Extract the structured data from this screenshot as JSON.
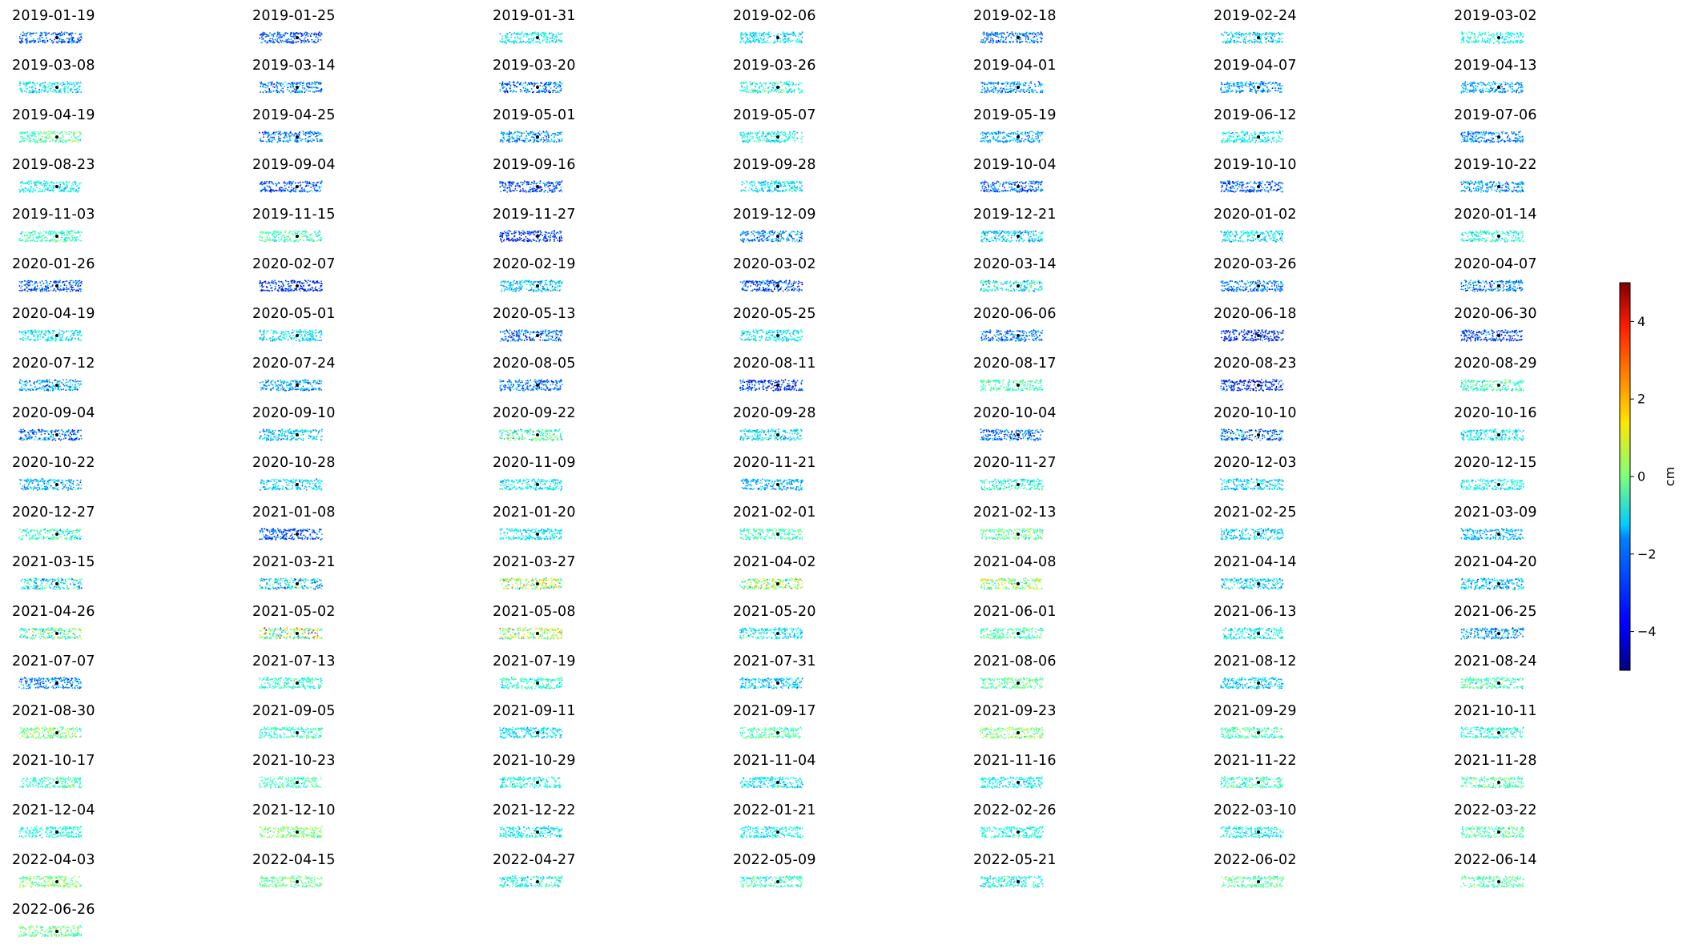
{
  "chart_data": {
    "type": "scatter",
    "layout": "small-multiples",
    "columns": 7,
    "panels": [
      {
        "date": "2019-01-19",
        "bias": -2.8,
        "spread": 0.9
      },
      {
        "date": "2019-01-25",
        "bias": -2.9,
        "spread": 0.8
      },
      {
        "date": "2019-01-31",
        "bias": -1.3,
        "spread": 0.7
      },
      {
        "date": "2019-02-06",
        "bias": -1.5,
        "spread": 0.7
      },
      {
        "date": "2019-02-18",
        "bias": -2.6,
        "spread": 0.8
      },
      {
        "date": "2019-02-24",
        "bias": -1.6,
        "spread": 0.9
      },
      {
        "date": "2019-03-02",
        "bias": -1.1,
        "spread": 0.6
      },
      {
        "date": "2019-03-08",
        "bias": -1.4,
        "spread": 0.8
      },
      {
        "date": "2019-03-14",
        "bias": -2.6,
        "spread": 1.0
      },
      {
        "date": "2019-03-20",
        "bias": -2.7,
        "spread": 1.3
      },
      {
        "date": "2019-03-26",
        "bias": -1.0,
        "spread": 1.0
      },
      {
        "date": "2019-04-01",
        "bias": -2.3,
        "spread": 0.8
      },
      {
        "date": "2019-04-07",
        "bias": -2.2,
        "spread": 0.9
      },
      {
        "date": "2019-04-13",
        "bias": -2.2,
        "spread": 0.8
      },
      {
        "date": "2019-04-19",
        "bias": -0.5,
        "spread": 0.9
      },
      {
        "date": "2019-04-25",
        "bias": -2.5,
        "spread": 1.0
      },
      {
        "date": "2019-05-01",
        "bias": -2.3,
        "spread": 0.9
      },
      {
        "date": "2019-05-07",
        "bias": -1.2,
        "spread": 0.9
      },
      {
        "date": "2019-05-19",
        "bias": -2.1,
        "spread": 0.8
      },
      {
        "date": "2019-06-12",
        "bias": -1.2,
        "spread": 0.8
      },
      {
        "date": "2019-07-06",
        "bias": -2.4,
        "spread": 0.8
      },
      {
        "date": "2019-08-23",
        "bias": -1.3,
        "spread": 0.7
      },
      {
        "date": "2019-09-04",
        "bias": -3.0,
        "spread": 0.9
      },
      {
        "date": "2019-09-16",
        "bias": -3.0,
        "spread": 0.9
      },
      {
        "date": "2019-09-28",
        "bias": -1.5,
        "spread": 0.8
      },
      {
        "date": "2019-10-04",
        "bias": -2.8,
        "spread": 0.9
      },
      {
        "date": "2019-10-10",
        "bias": -2.9,
        "spread": 1.0
      },
      {
        "date": "2019-10-22",
        "bias": -2.2,
        "spread": 0.8
      },
      {
        "date": "2019-11-03",
        "bias": -0.7,
        "spread": 0.9
      },
      {
        "date": "2019-11-15",
        "bias": -0.6,
        "spread": 0.8
      },
      {
        "date": "2019-11-27",
        "bias": -3.2,
        "spread": 0.9
      },
      {
        "date": "2019-12-09",
        "bias": -2.4,
        "spread": 1.0
      },
      {
        "date": "2019-12-21",
        "bias": -1.7,
        "spread": 0.9
      },
      {
        "date": "2020-01-02",
        "bias": -1.4,
        "spread": 0.8
      },
      {
        "date": "2020-01-14",
        "bias": -1.0,
        "spread": 0.8
      },
      {
        "date": "2020-01-26",
        "bias": -3.0,
        "spread": 0.9
      },
      {
        "date": "2020-02-07",
        "bias": -3.3,
        "spread": 0.9
      },
      {
        "date": "2020-02-19",
        "bias": -1.8,
        "spread": 0.9
      },
      {
        "date": "2020-03-02",
        "bias": -3.1,
        "spread": 1.0
      },
      {
        "date": "2020-03-14",
        "bias": -1.3,
        "spread": 1.2
      },
      {
        "date": "2020-03-26",
        "bias": -2.4,
        "spread": 1.0
      },
      {
        "date": "2020-04-07",
        "bias": -2.4,
        "spread": 1.1
      },
      {
        "date": "2020-04-19",
        "bias": -1.4,
        "spread": 0.7
      },
      {
        "date": "2020-05-01",
        "bias": -1.5,
        "spread": 0.7
      },
      {
        "date": "2020-05-13",
        "bias": -2.8,
        "spread": 1.1
      },
      {
        "date": "2020-05-25",
        "bias": -1.4,
        "spread": 0.7
      },
      {
        "date": "2020-06-06",
        "bias": -2.5,
        "spread": 0.8
      },
      {
        "date": "2020-06-18",
        "bias": -3.3,
        "spread": 0.9
      },
      {
        "date": "2020-06-30",
        "bias": -3.1,
        "spread": 0.9
      },
      {
        "date": "2020-07-12",
        "bias": -2.2,
        "spread": 0.8
      },
      {
        "date": "2020-07-24",
        "bias": -2.3,
        "spread": 0.8
      },
      {
        "date": "2020-08-05",
        "bias": -2.6,
        "spread": 0.9
      },
      {
        "date": "2020-08-11",
        "bias": -3.3,
        "spread": 0.9
      },
      {
        "date": "2020-08-17",
        "bias": -0.6,
        "spread": 0.8
      },
      {
        "date": "2020-08-23",
        "bias": -3.4,
        "spread": 1.0
      },
      {
        "date": "2020-08-29",
        "bias": -0.7,
        "spread": 0.9
      },
      {
        "date": "2020-09-04",
        "bias": -2.7,
        "spread": 1.3
      },
      {
        "date": "2020-09-10",
        "bias": -1.9,
        "spread": 0.9
      },
      {
        "date": "2020-09-22",
        "bias": -0.5,
        "spread": 1.3
      },
      {
        "date": "2020-09-28",
        "bias": -1.5,
        "spread": 1.0
      },
      {
        "date": "2020-10-04",
        "bias": -2.6,
        "spread": 0.9
      },
      {
        "date": "2020-10-10",
        "bias": -2.6,
        "spread": 1.8
      },
      {
        "date": "2020-10-16",
        "bias": -1.2,
        "spread": 0.9
      },
      {
        "date": "2020-10-22",
        "bias": -2.0,
        "spread": 0.8
      },
      {
        "date": "2020-10-28",
        "bias": -1.7,
        "spread": 0.8
      },
      {
        "date": "2020-11-09",
        "bias": -1.4,
        "spread": 0.7
      },
      {
        "date": "2020-11-21",
        "bias": -2.0,
        "spread": 0.8
      },
      {
        "date": "2020-11-27",
        "bias": -0.9,
        "spread": 0.9
      },
      {
        "date": "2020-12-03",
        "bias": -1.6,
        "spread": 0.8
      },
      {
        "date": "2020-12-15",
        "bias": -1.2,
        "spread": 0.7
      },
      {
        "date": "2020-12-27",
        "bias": -0.8,
        "spread": 0.9
      },
      {
        "date": "2021-01-08",
        "bias": -2.9,
        "spread": 0.9
      },
      {
        "date": "2021-01-20",
        "bias": -1.4,
        "spread": 0.7
      },
      {
        "date": "2021-02-01",
        "bias": -0.6,
        "spread": 0.8
      },
      {
        "date": "2021-02-13",
        "bias": -0.3,
        "spread": 0.9
      },
      {
        "date": "2021-02-25",
        "bias": -1.6,
        "spread": 0.8
      },
      {
        "date": "2021-03-09",
        "bias": -2.0,
        "spread": 0.8
      },
      {
        "date": "2021-03-15",
        "bias": -1.3,
        "spread": 1.3
      },
      {
        "date": "2021-03-21",
        "bias": -1.5,
        "spread": 1.5
      },
      {
        "date": "2021-03-27",
        "bias": 0.3,
        "spread": 1.5
      },
      {
        "date": "2021-04-02",
        "bias": 0.5,
        "spread": 1.6
      },
      {
        "date": "2021-04-08",
        "bias": 0.2,
        "spread": 1.2
      },
      {
        "date": "2021-04-14",
        "bias": -1.4,
        "spread": 1.0
      },
      {
        "date": "2021-04-20",
        "bias": -1.8,
        "spread": 1.0
      },
      {
        "date": "2021-04-26",
        "bias": -0.5,
        "spread": 1.3
      },
      {
        "date": "2021-05-02",
        "bias": 0.2,
        "spread": 2.0
      },
      {
        "date": "2021-05-08",
        "bias": 0.4,
        "spread": 1.4
      },
      {
        "date": "2021-05-20",
        "bias": -1.4,
        "spread": 0.8
      },
      {
        "date": "2021-06-01",
        "bias": -0.5,
        "spread": 0.8
      },
      {
        "date": "2021-06-13",
        "bias": -1.2,
        "spread": 0.9
      },
      {
        "date": "2021-06-25",
        "bias": -2.2,
        "spread": 1.1
      },
      {
        "date": "2021-07-07",
        "bias": -2.4,
        "spread": 1.1
      },
      {
        "date": "2021-07-13",
        "bias": -0.8,
        "spread": 0.7
      },
      {
        "date": "2021-07-19",
        "bias": -0.8,
        "spread": 0.7
      },
      {
        "date": "2021-07-31",
        "bias": -1.7,
        "spread": 0.8
      },
      {
        "date": "2021-08-06",
        "bias": -0.4,
        "spread": 0.7
      },
      {
        "date": "2021-08-12",
        "bias": -1.6,
        "spread": 0.8
      },
      {
        "date": "2021-08-24",
        "bias": -0.6,
        "spread": 0.9
      },
      {
        "date": "2021-08-30",
        "bias": -0.1,
        "spread": 1.1
      },
      {
        "date": "2021-09-05",
        "bias": -0.8,
        "spread": 0.8
      },
      {
        "date": "2021-09-11",
        "bias": -1.5,
        "spread": 0.7
      },
      {
        "date": "2021-09-17",
        "bias": -0.5,
        "spread": 0.7
      },
      {
        "date": "2021-09-23",
        "bias": 0.0,
        "spread": 1.0
      },
      {
        "date": "2021-09-29",
        "bias": -0.6,
        "spread": 0.8
      },
      {
        "date": "2021-10-11",
        "bias": -0.9,
        "spread": 0.7
      },
      {
        "date": "2021-10-17",
        "bias": -0.7,
        "spread": 0.7
      },
      {
        "date": "2021-10-23",
        "bias": -0.6,
        "spread": 0.7
      },
      {
        "date": "2021-10-29",
        "bias": -1.0,
        "spread": 0.7
      },
      {
        "date": "2021-11-04",
        "bias": -1.4,
        "spread": 0.7
      },
      {
        "date": "2021-11-16",
        "bias": -1.3,
        "spread": 0.7
      },
      {
        "date": "2021-11-22",
        "bias": -0.8,
        "spread": 0.8
      },
      {
        "date": "2021-11-28",
        "bias": -0.5,
        "spread": 0.8
      },
      {
        "date": "2021-12-04",
        "bias": -1.0,
        "spread": 0.7
      },
      {
        "date": "2021-12-10",
        "bias": 0.1,
        "spread": 0.9
      },
      {
        "date": "2021-12-22",
        "bias": -1.4,
        "spread": 0.8
      },
      {
        "date": "2022-01-21",
        "bias": -1.2,
        "spread": 0.6
      },
      {
        "date": "2022-02-26",
        "bias": -1.0,
        "spread": 0.6
      },
      {
        "date": "2022-03-10",
        "bias": -1.2,
        "spread": 0.7
      },
      {
        "date": "2022-03-22",
        "bias": -0.4,
        "spread": 0.8
      },
      {
        "date": "2022-04-03",
        "bias": 0.0,
        "spread": 0.9
      },
      {
        "date": "2022-04-15",
        "bias": -0.2,
        "spread": 0.7
      },
      {
        "date": "2022-04-27",
        "bias": -1.0,
        "spread": 0.9
      },
      {
        "date": "2022-05-09",
        "bias": -0.7,
        "spread": 0.8
      },
      {
        "date": "2022-05-21",
        "bias": -1.0,
        "spread": 0.8
      },
      {
        "date": "2022-06-02",
        "bias": -0.3,
        "spread": 0.8
      },
      {
        "date": "2022-06-14",
        "bias": -0.4,
        "spread": 0.7
      },
      {
        "date": "2022-06-26",
        "bias": -0.2,
        "spread": 0.8
      }
    ],
    "colorbar": {
      "colormap": "jet",
      "label": "cm",
      "range": [
        -5,
        5
      ],
      "ticks": [
        -4,
        -2,
        0,
        2,
        4
      ],
      "tick_labels": [
        "−4",
        "−2",
        "0",
        "2",
        "4"
      ]
    },
    "reference_point_color": "#000000"
  }
}
